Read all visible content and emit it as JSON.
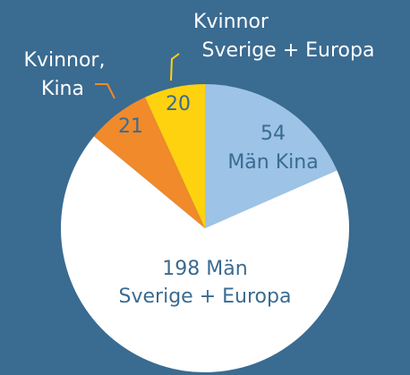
{
  "chart_data": {
    "type": "pie",
    "categories": [
      [
        "Män Kina"
      ],
      [
        "Män",
        "Sverige + Europa"
      ],
      [
        "Kvinnor,",
        "Kina"
      ],
      [
        "Kvinnor",
        "Sverige + Europa"
      ]
    ],
    "values": [
      54,
      198,
      21,
      20
    ],
    "colors": [
      "#9dc3e6",
      "#ffffff",
      "#f08a2a",
      "#ffd210"
    ]
  }
}
